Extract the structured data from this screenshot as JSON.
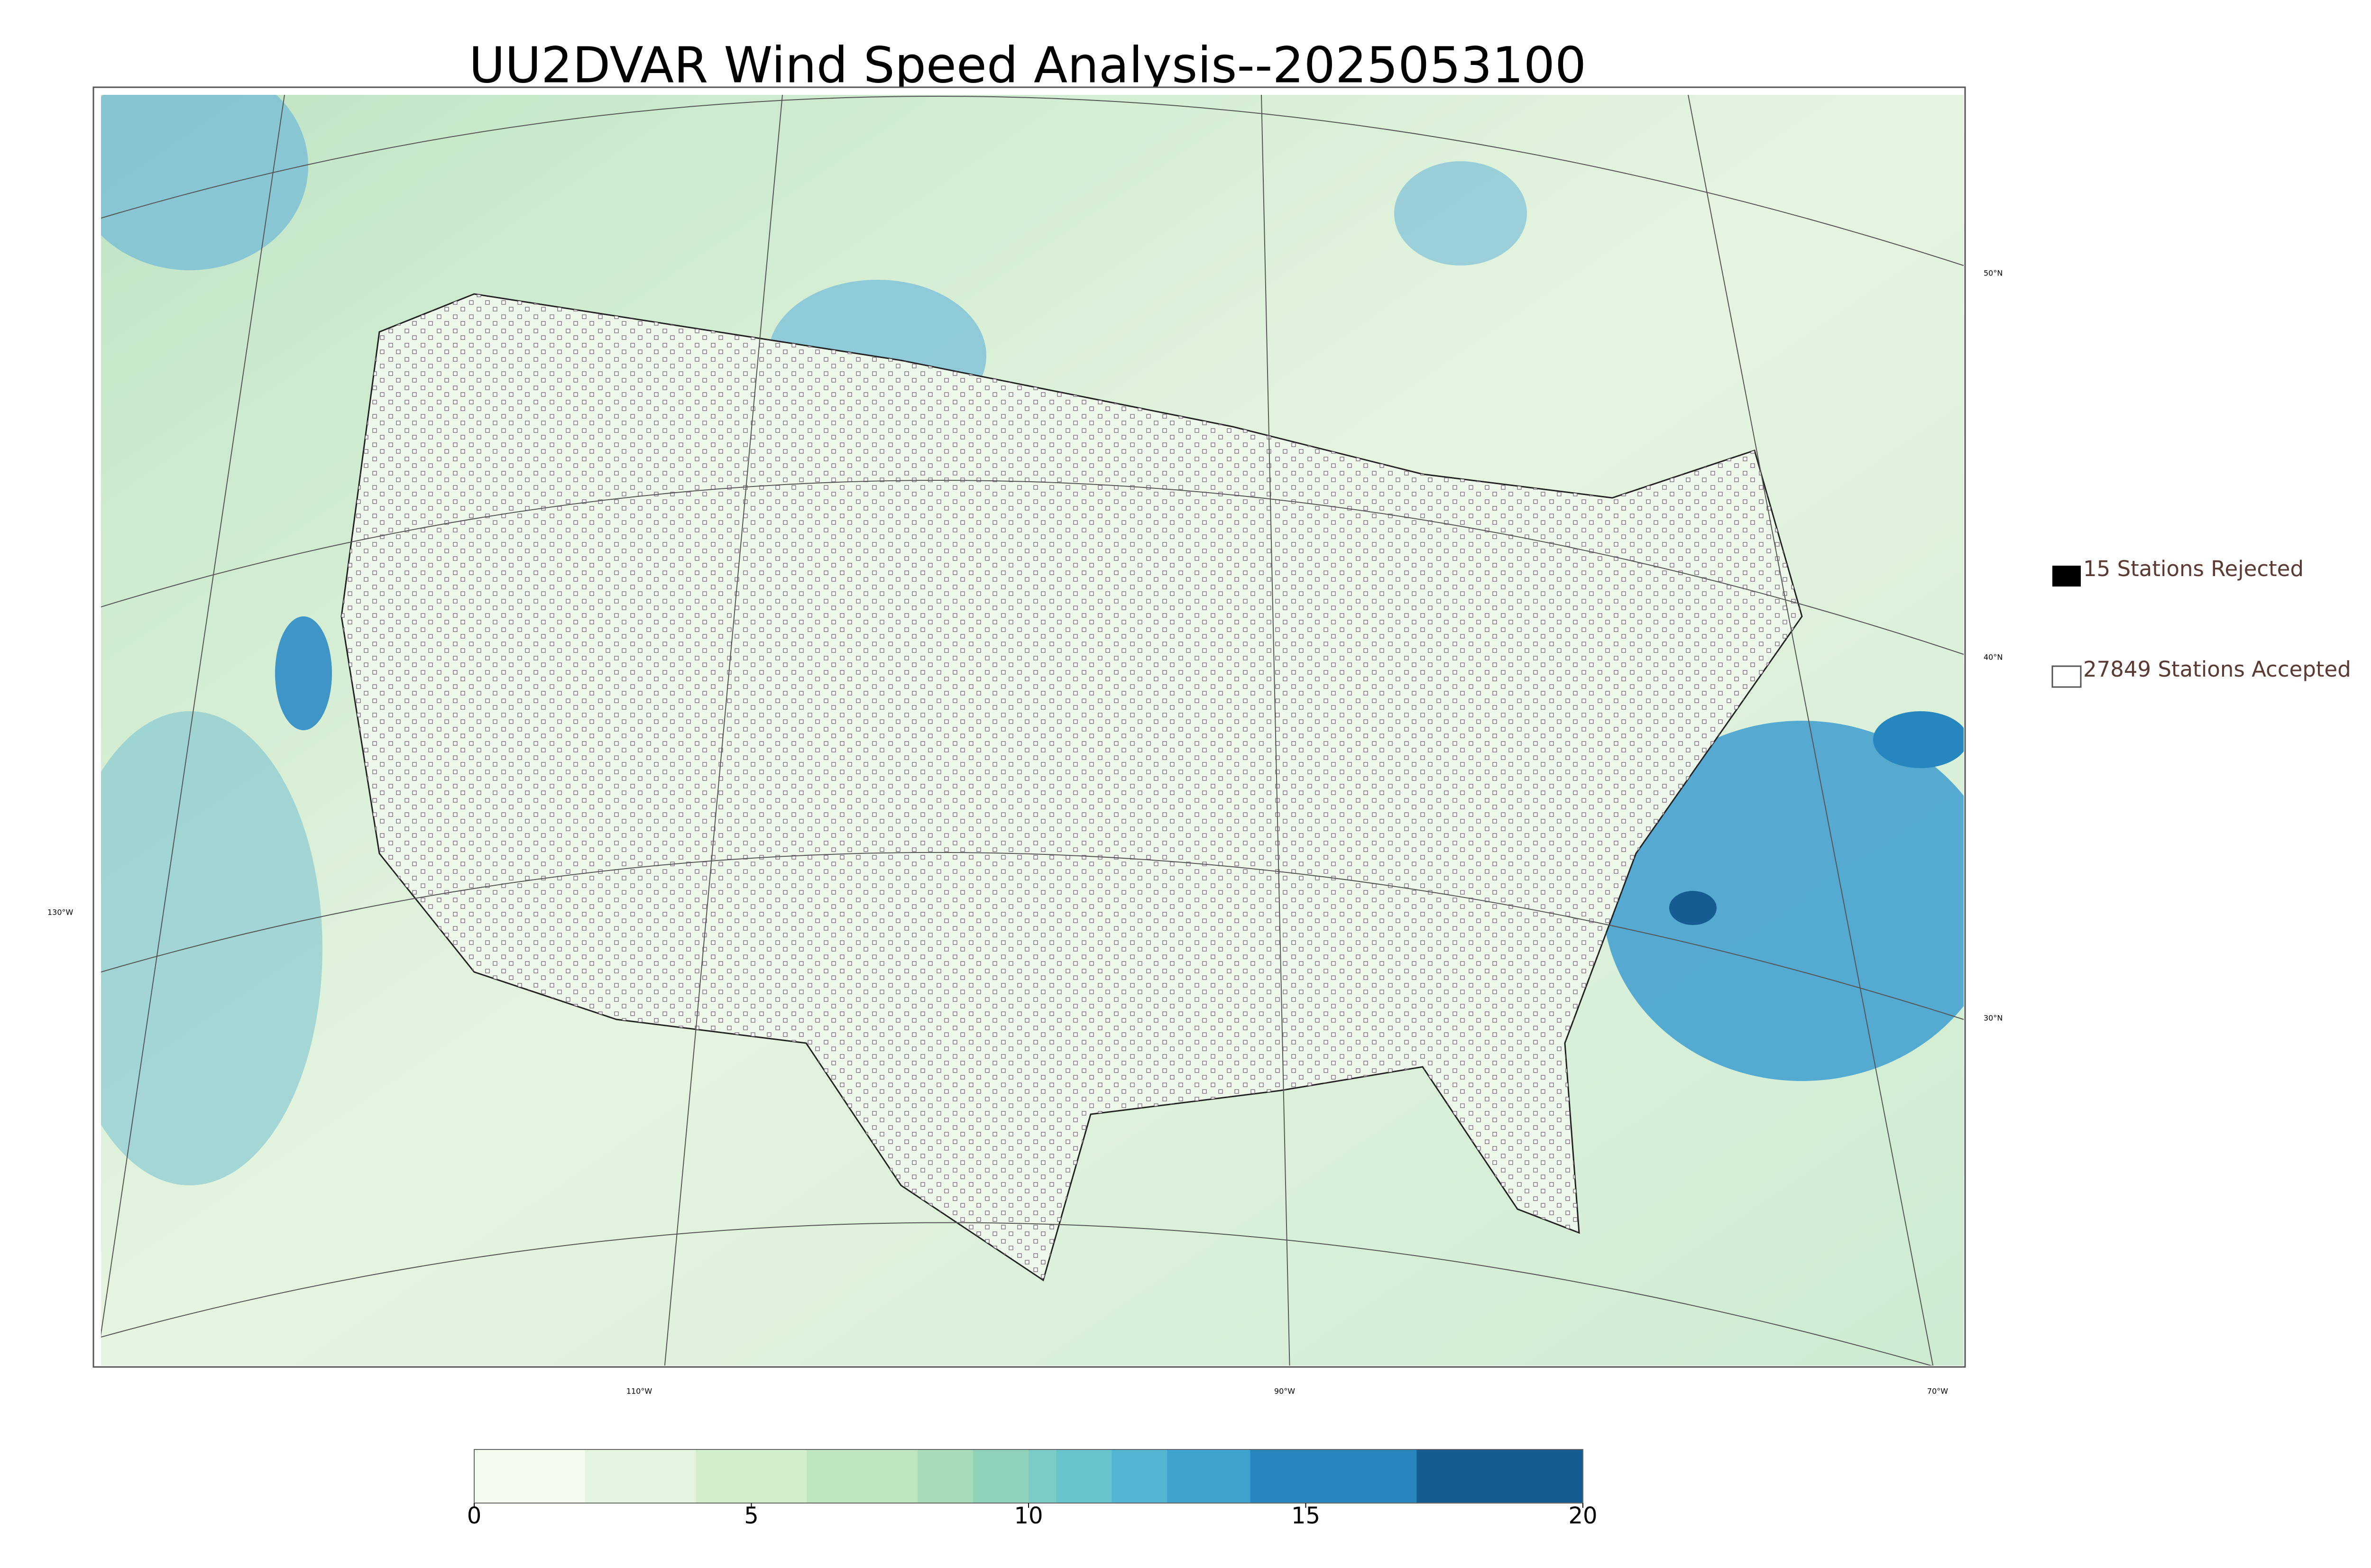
{
  "title": "UU2DVAR Wind Speed Analysis--2025053100",
  "legend": {
    "rejected": "15 Stations Rejected",
    "accepted": "27849 Stations Accepted"
  },
  "lat_labels": [
    "50°N",
    "40°N",
    "30°N"
  ],
  "lon_labels": [
    "130°W",
    "110°W",
    "90°W",
    "70°W"
  ],
  "colorbar": {
    "range": [
      0,
      20
    ],
    "ticks": [
      0,
      5,
      10,
      15,
      20
    ],
    "levels": [
      0,
      2,
      4,
      6,
      8,
      9,
      10,
      10.5,
      11.5,
      12.5,
      14,
      17,
      20
    ],
    "colors": [
      "#f3fbef",
      "#e4f5df",
      "#d2eecc",
      "#bde5bf",
      "#a6dcb8",
      "#8fd3ba",
      "#7accc4",
      "#66c2cb",
      "#52b5d2",
      "#3fa3d0",
      "#2786be",
      "#145c91"
    ]
  }
}
